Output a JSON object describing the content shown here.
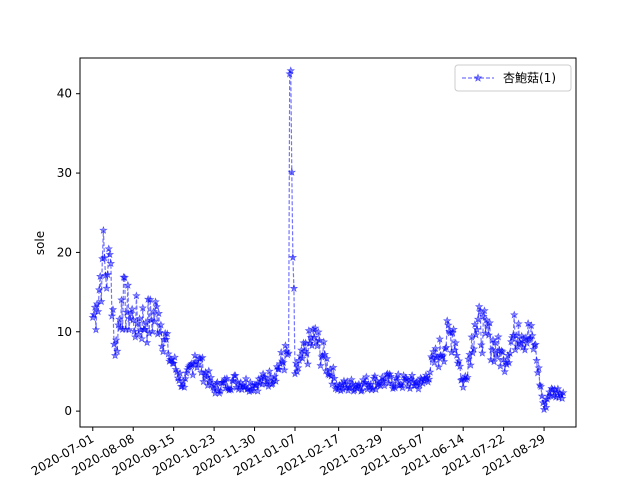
{
  "chart_data": {
    "type": "line",
    "title": "",
    "xlabel": "",
    "ylabel": "sole",
    "x_start": "2020-07-01",
    "x_end": "2021-09-16",
    "xlim": [
      "2020-06-19",
      "2021-09-28"
    ],
    "ylim": [
      -2,
      44.5
    ],
    "yticks": [
      0,
      10,
      20,
      30,
      40
    ],
    "xticks": [
      "2020-07-01",
      "2020-08-08",
      "2020-09-15",
      "2020-10-23",
      "2020-11-30",
      "2021-01-07",
      "2021-02-17",
      "2021-03-29",
      "2021-05-07",
      "2021-06-14",
      "2021-07-22",
      "2021-08-29"
    ],
    "legend_position": "top-right",
    "grid": false,
    "series": [
      {
        "name": "杏鮑菇(1)",
        "color": "#0000ff",
        "marker": "star",
        "linestyle": "dashed",
        "values_sample": [
          {
            "x": "2020-07-01",
            "y": 11.8
          },
          {
            "x": "2020-07-05",
            "y": 13.5
          },
          {
            "x": "2020-07-10",
            "y": 19.2
          },
          {
            "x": "2020-07-15",
            "y": 17.2
          },
          {
            "x": "2020-07-18",
            "y": 18.6
          },
          {
            "x": "2020-07-22",
            "y": 7.0
          },
          {
            "x": "2020-07-28",
            "y": 14.0
          },
          {
            "x": "2020-08-08",
            "y": 11.5
          },
          {
            "x": "2020-08-20",
            "y": 11.2
          },
          {
            "x": "2020-09-01",
            "y": 12.3
          },
          {
            "x": "2020-09-10",
            "y": 7.2
          },
          {
            "x": "2020-09-15",
            "y": 6.0
          },
          {
            "x": "2020-09-25",
            "y": 3.0
          },
          {
            "x": "2020-10-05",
            "y": 7.0
          },
          {
            "x": "2020-10-23",
            "y": 2.8
          },
          {
            "x": "2020-11-10",
            "y": 3.8
          },
          {
            "x": "2020-11-30",
            "y": 3.3
          },
          {
            "x": "2020-12-15",
            "y": 4.2
          },
          {
            "x": "2021-01-01",
            "y": 7.3
          },
          {
            "x": "2021-01-02",
            "y": 42.5
          },
          {
            "x": "2021-01-07",
            "y": 4.7
          },
          {
            "x": "2021-01-25",
            "y": 9.3
          },
          {
            "x": "2021-02-17",
            "y": 3.0
          },
          {
            "x": "2021-03-29",
            "y": 3.8
          },
          {
            "x": "2021-05-07",
            "y": 3.5
          },
          {
            "x": "2021-05-20",
            "y": 6.8
          },
          {
            "x": "2021-06-05",
            "y": 10.3
          },
          {
            "x": "2021-06-14",
            "y": 3.0
          },
          {
            "x": "2021-06-25",
            "y": 10.9
          },
          {
            "x": "2021-07-05",
            "y": 9.8
          },
          {
            "x": "2021-07-22",
            "y": 6.5
          },
          {
            "x": "2021-08-05",
            "y": 11.0
          },
          {
            "x": "2021-08-20",
            "y": 8.3
          },
          {
            "x": "2021-08-29",
            "y": 0.2
          },
          {
            "x": "2021-09-03",
            "y": 2.4
          }
        ]
      }
    ]
  }
}
